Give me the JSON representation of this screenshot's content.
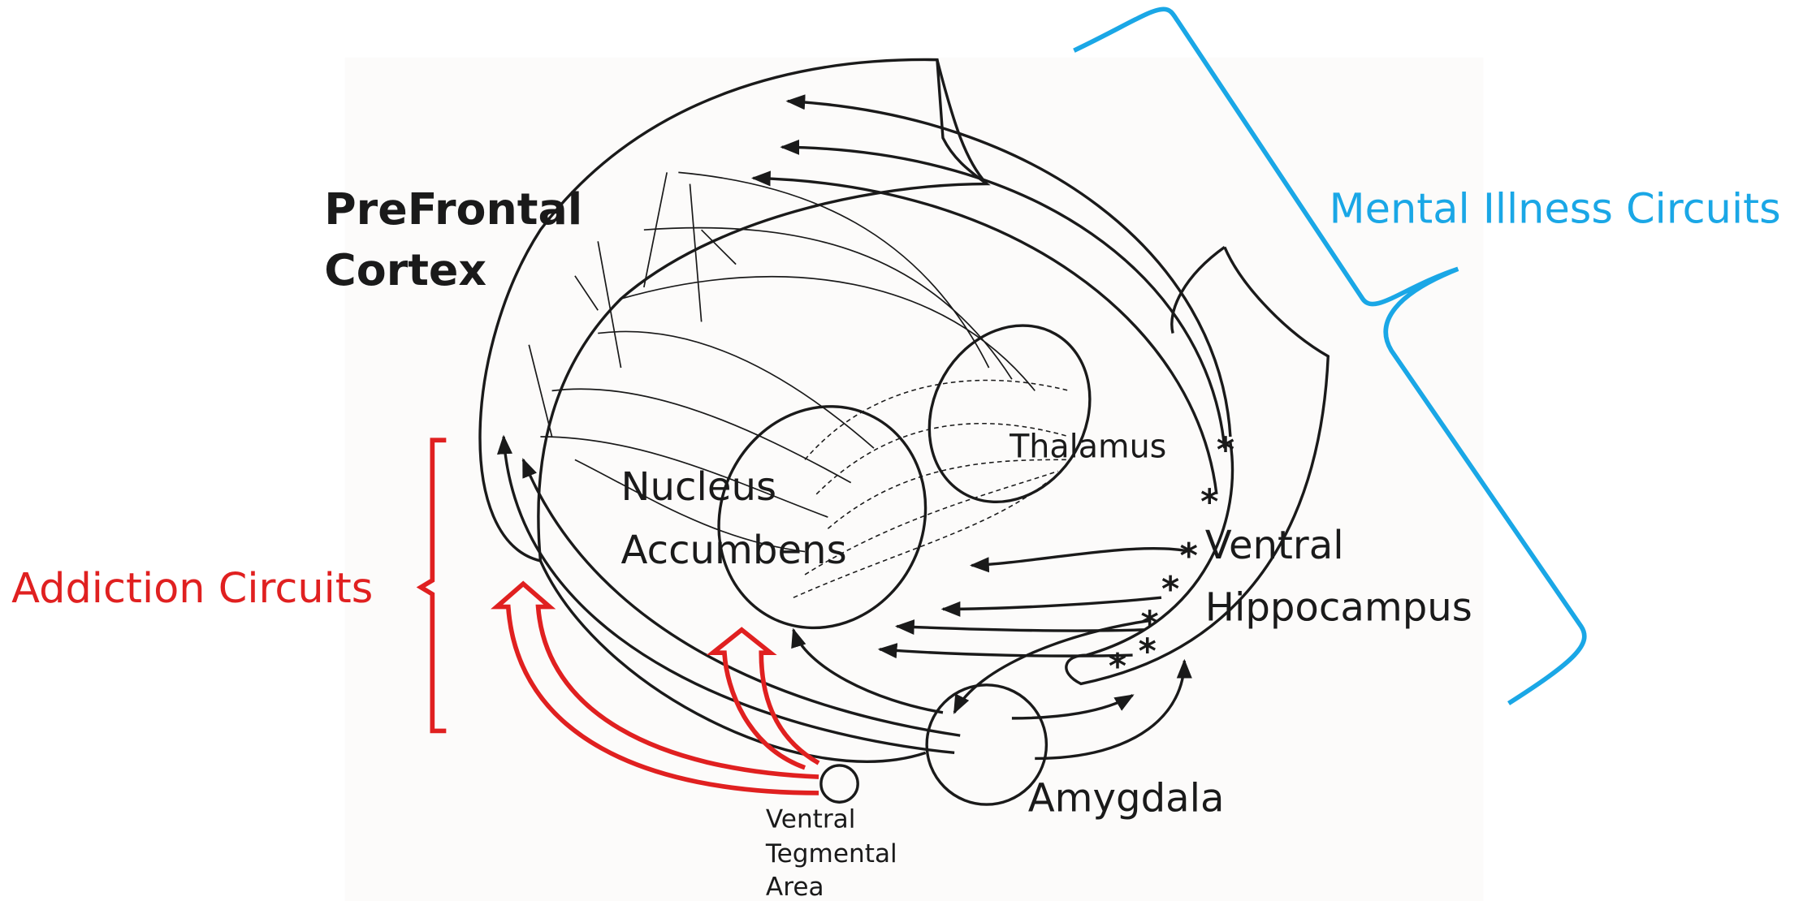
{
  "regions": {
    "prefrontal_cortex": [
      "PreFrontal",
      "Cortex"
    ],
    "nucleus_accumbens": [
      "Nucleus",
      "Accumbens"
    ],
    "thalamus": "Thalamus",
    "ventral_hippocampus": [
      "Ventral",
      "Hippocampus"
    ],
    "amygdala": "Amygdala",
    "ventral_tegmental_area": [
      "Ventral",
      "Tegmental",
      "Area"
    ]
  },
  "circuits": {
    "addiction": "Addiction Circuits",
    "mental_illness": "Mental Illness Circuits"
  }
}
